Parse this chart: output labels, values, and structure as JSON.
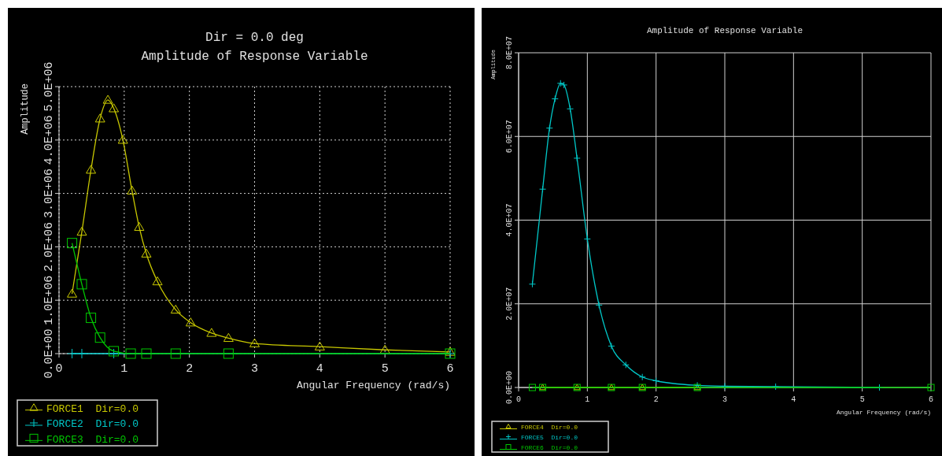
{
  "chart_data": [
    {
      "type": "line",
      "title": "Dir = 0.0 deg",
      "subtitle": "Amplitude of Response Variable",
      "xlabel": "Angular Frequency (rad/s)",
      "ylabel": "Amplitude",
      "xlim": [
        0,
        6
      ],
      "xticks": [
        0,
        1,
        2,
        3,
        4,
        5,
        6
      ],
      "ylim": [
        0,
        5000000
      ],
      "yticks": [
        {
          "value": 0,
          "label": "0.0E+00"
        },
        {
          "value": 1000000,
          "label": "1.0E+06"
        },
        {
          "value": 2000000,
          "label": "2.0E+06"
        },
        {
          "value": 3000000,
          "label": "3.0E+06"
        },
        {
          "value": 4000000,
          "label": "4.0E+06"
        },
        {
          "value": 5000000,
          "label": "5.0E+06"
        }
      ],
      "grid": true,
      "legend": "bottom left",
      "series": [
        {
          "name": "FORCE1  Dir=0.0",
          "color": "#c8c800",
          "marker": "triangle",
          "x": [
            0.2,
            0.35,
            0.49,
            0.63,
            0.75,
            0.84,
            0.98,
            1.12,
            1.23,
            1.34,
            1.51,
            1.79,
            2.02,
            2.34,
            2.6,
            3.0,
            4.0,
            5.0,
            6.0
          ],
          "values": [
            1120000,
            2280000,
            3440000,
            4400000,
            4750000,
            4590000,
            4000000,
            3050000,
            2370000,
            1870000,
            1350000,
            820000,
            580000,
            385000,
            290000,
            190000,
            130000,
            70000,
            30000
          ]
        },
        {
          "name": "FORCE2  Dir=0.0",
          "color": "#00c8c8",
          "marker": "cross",
          "x": [
            0.2,
            0.35,
            0.84,
            6.0
          ],
          "values": [
            0,
            0,
            0,
            0
          ]
        },
        {
          "name": "FORCE3  Dir=0.0",
          "color": "#00c800",
          "marker": "square",
          "x": [
            0.2,
            0.35,
            0.49,
            0.63,
            0.84,
            1.1,
            1.34,
            1.79,
            2.6,
            6.0
          ],
          "values": [
            2070000,
            1300000,
            670000,
            300000,
            45000,
            0,
            0,
            0,
            0,
            0
          ]
        }
      ]
    },
    {
      "type": "line",
      "title": "Amplitude of Response Variable",
      "xlabel": "Angular Frequency (rad/s)",
      "ylabel": "Amplitude",
      "xlim": [
        0,
        6
      ],
      "xticks": [
        0,
        1,
        2,
        3,
        4,
        5,
        6
      ],
      "ylim": [
        0,
        80000000
      ],
      "yticks": [
        {
          "value": 0,
          "label": "0.0E+00"
        },
        {
          "value": 20000000,
          "label": "2.0E+07"
        },
        {
          "value": 40000000,
          "label": "4.0E+07"
        },
        {
          "value": 60000000,
          "label": "6.0E+07"
        },
        {
          "value": 80000000,
          "label": "8.0E+07"
        }
      ],
      "grid": true,
      "legend": "bottom left",
      "series": [
        {
          "name": "FORCE4  Dir=0.0",
          "color": "#c8c800",
          "marker": "triangle",
          "x": [
            0.35,
            0.85,
            1.35,
            1.8,
            2.6
          ],
          "values": [
            0,
            0,
            0,
            0,
            0
          ]
        },
        {
          "name": "FORCE5  Dir=0.0",
          "color": "#00c8c8",
          "marker": "cross",
          "x": [
            0.2,
            0.35,
            0.45,
            0.53,
            0.61,
            0.66,
            0.75,
            0.85,
            1.0,
            1.17,
            1.35,
            1.56,
            1.8,
            2.0,
            2.6,
            3.0,
            3.74,
            5.25
          ],
          "values": [
            24700000,
            47400000,
            62000000,
            69000000,
            72700000,
            72300000,
            66600000,
            54800000,
            35500000,
            19700000,
            9900000,
            5400000,
            2500000,
            1600000,
            500000,
            300000,
            200000,
            0
          ]
        },
        {
          "name": "FORCE6  Dir=0.0",
          "color": "#00c800",
          "marker": "square",
          "x": [
            0.2,
            0.35,
            0.85,
            1.35,
            1.8,
            2.6,
            6.0
          ],
          "values": [
            0,
            0,
            0,
            0,
            0,
            0,
            0
          ]
        }
      ]
    }
  ]
}
